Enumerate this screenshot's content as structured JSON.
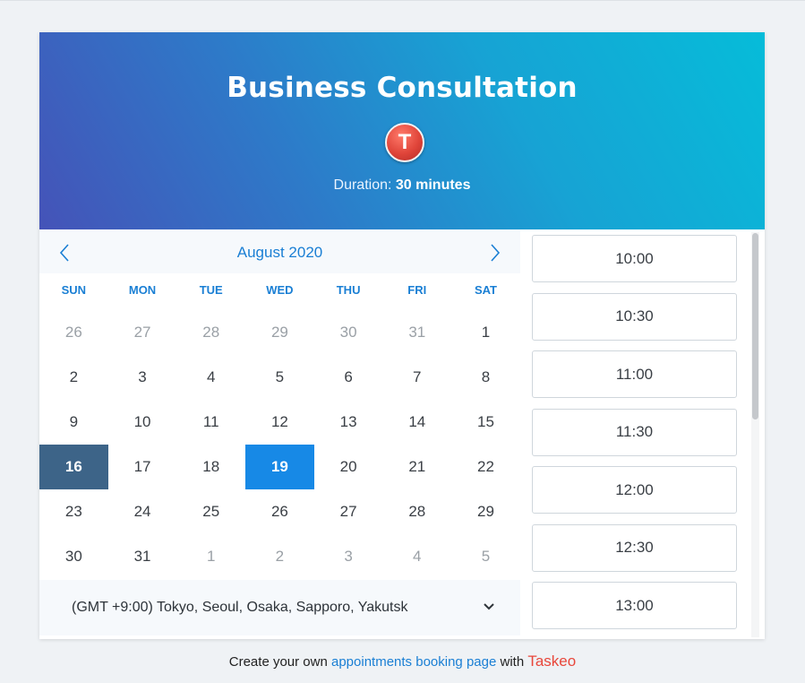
{
  "header": {
    "title": "Business Consultation",
    "avatar_letter": "T",
    "duration_label": "Duration:",
    "duration_value": "30 minutes"
  },
  "calendar": {
    "month": "August 2020",
    "weekdays": [
      "SUN",
      "MON",
      "TUE",
      "WED",
      "THU",
      "FRI",
      "SAT"
    ],
    "days": [
      {
        "label": "26",
        "state": "other"
      },
      {
        "label": "27",
        "state": "other"
      },
      {
        "label": "28",
        "state": "other"
      },
      {
        "label": "29",
        "state": "other"
      },
      {
        "label": "30",
        "state": "other"
      },
      {
        "label": "31",
        "state": "other"
      },
      {
        "label": "1",
        "state": "current"
      },
      {
        "label": "2",
        "state": "current"
      },
      {
        "label": "3",
        "state": "current"
      },
      {
        "label": "4",
        "state": "current"
      },
      {
        "label": "5",
        "state": "current"
      },
      {
        "label": "6",
        "state": "current"
      },
      {
        "label": "7",
        "state": "current"
      },
      {
        "label": "8",
        "state": "current"
      },
      {
        "label": "9",
        "state": "current"
      },
      {
        "label": "10",
        "state": "current"
      },
      {
        "label": "11",
        "state": "current"
      },
      {
        "label": "12",
        "state": "current"
      },
      {
        "label": "13",
        "state": "current"
      },
      {
        "label": "14",
        "state": "current"
      },
      {
        "label": "15",
        "state": "current"
      },
      {
        "label": "16",
        "state": "today"
      },
      {
        "label": "17",
        "state": "current"
      },
      {
        "label": "18",
        "state": "current"
      },
      {
        "label": "19",
        "state": "selected"
      },
      {
        "label": "20",
        "state": "current"
      },
      {
        "label": "21",
        "state": "current"
      },
      {
        "label": "22",
        "state": "current"
      },
      {
        "label": "23",
        "state": "current"
      },
      {
        "label": "24",
        "state": "current"
      },
      {
        "label": "25",
        "state": "current"
      },
      {
        "label": "26",
        "state": "current"
      },
      {
        "label": "27",
        "state": "current"
      },
      {
        "label": "28",
        "state": "current"
      },
      {
        "label": "29",
        "state": "current"
      },
      {
        "label": "30",
        "state": "current"
      },
      {
        "label": "31",
        "state": "current"
      },
      {
        "label": "1",
        "state": "other"
      },
      {
        "label": "2",
        "state": "other"
      },
      {
        "label": "3",
        "state": "other"
      },
      {
        "label": "4",
        "state": "other"
      },
      {
        "label": "5",
        "state": "other"
      }
    ],
    "prev_icon": "chevron-left-icon",
    "next_icon": "chevron-right-icon"
  },
  "timezone": {
    "value": "(GMT +9:00) Tokyo, Seoul, Osaka, Sapporo, Yakutsk",
    "icon": "chevron-down-icon"
  },
  "time_slots": [
    "10:00",
    "10:30",
    "11:00",
    "11:30",
    "12:00",
    "12:30",
    "13:00"
  ],
  "footer": {
    "prefix": "Create your own",
    "link": "appointments booking page",
    "middle": "with",
    "brand": "Taskeo"
  },
  "colors": {
    "accent": "#1789e6",
    "today": "#3d6488",
    "brand": "#e8473b"
  }
}
